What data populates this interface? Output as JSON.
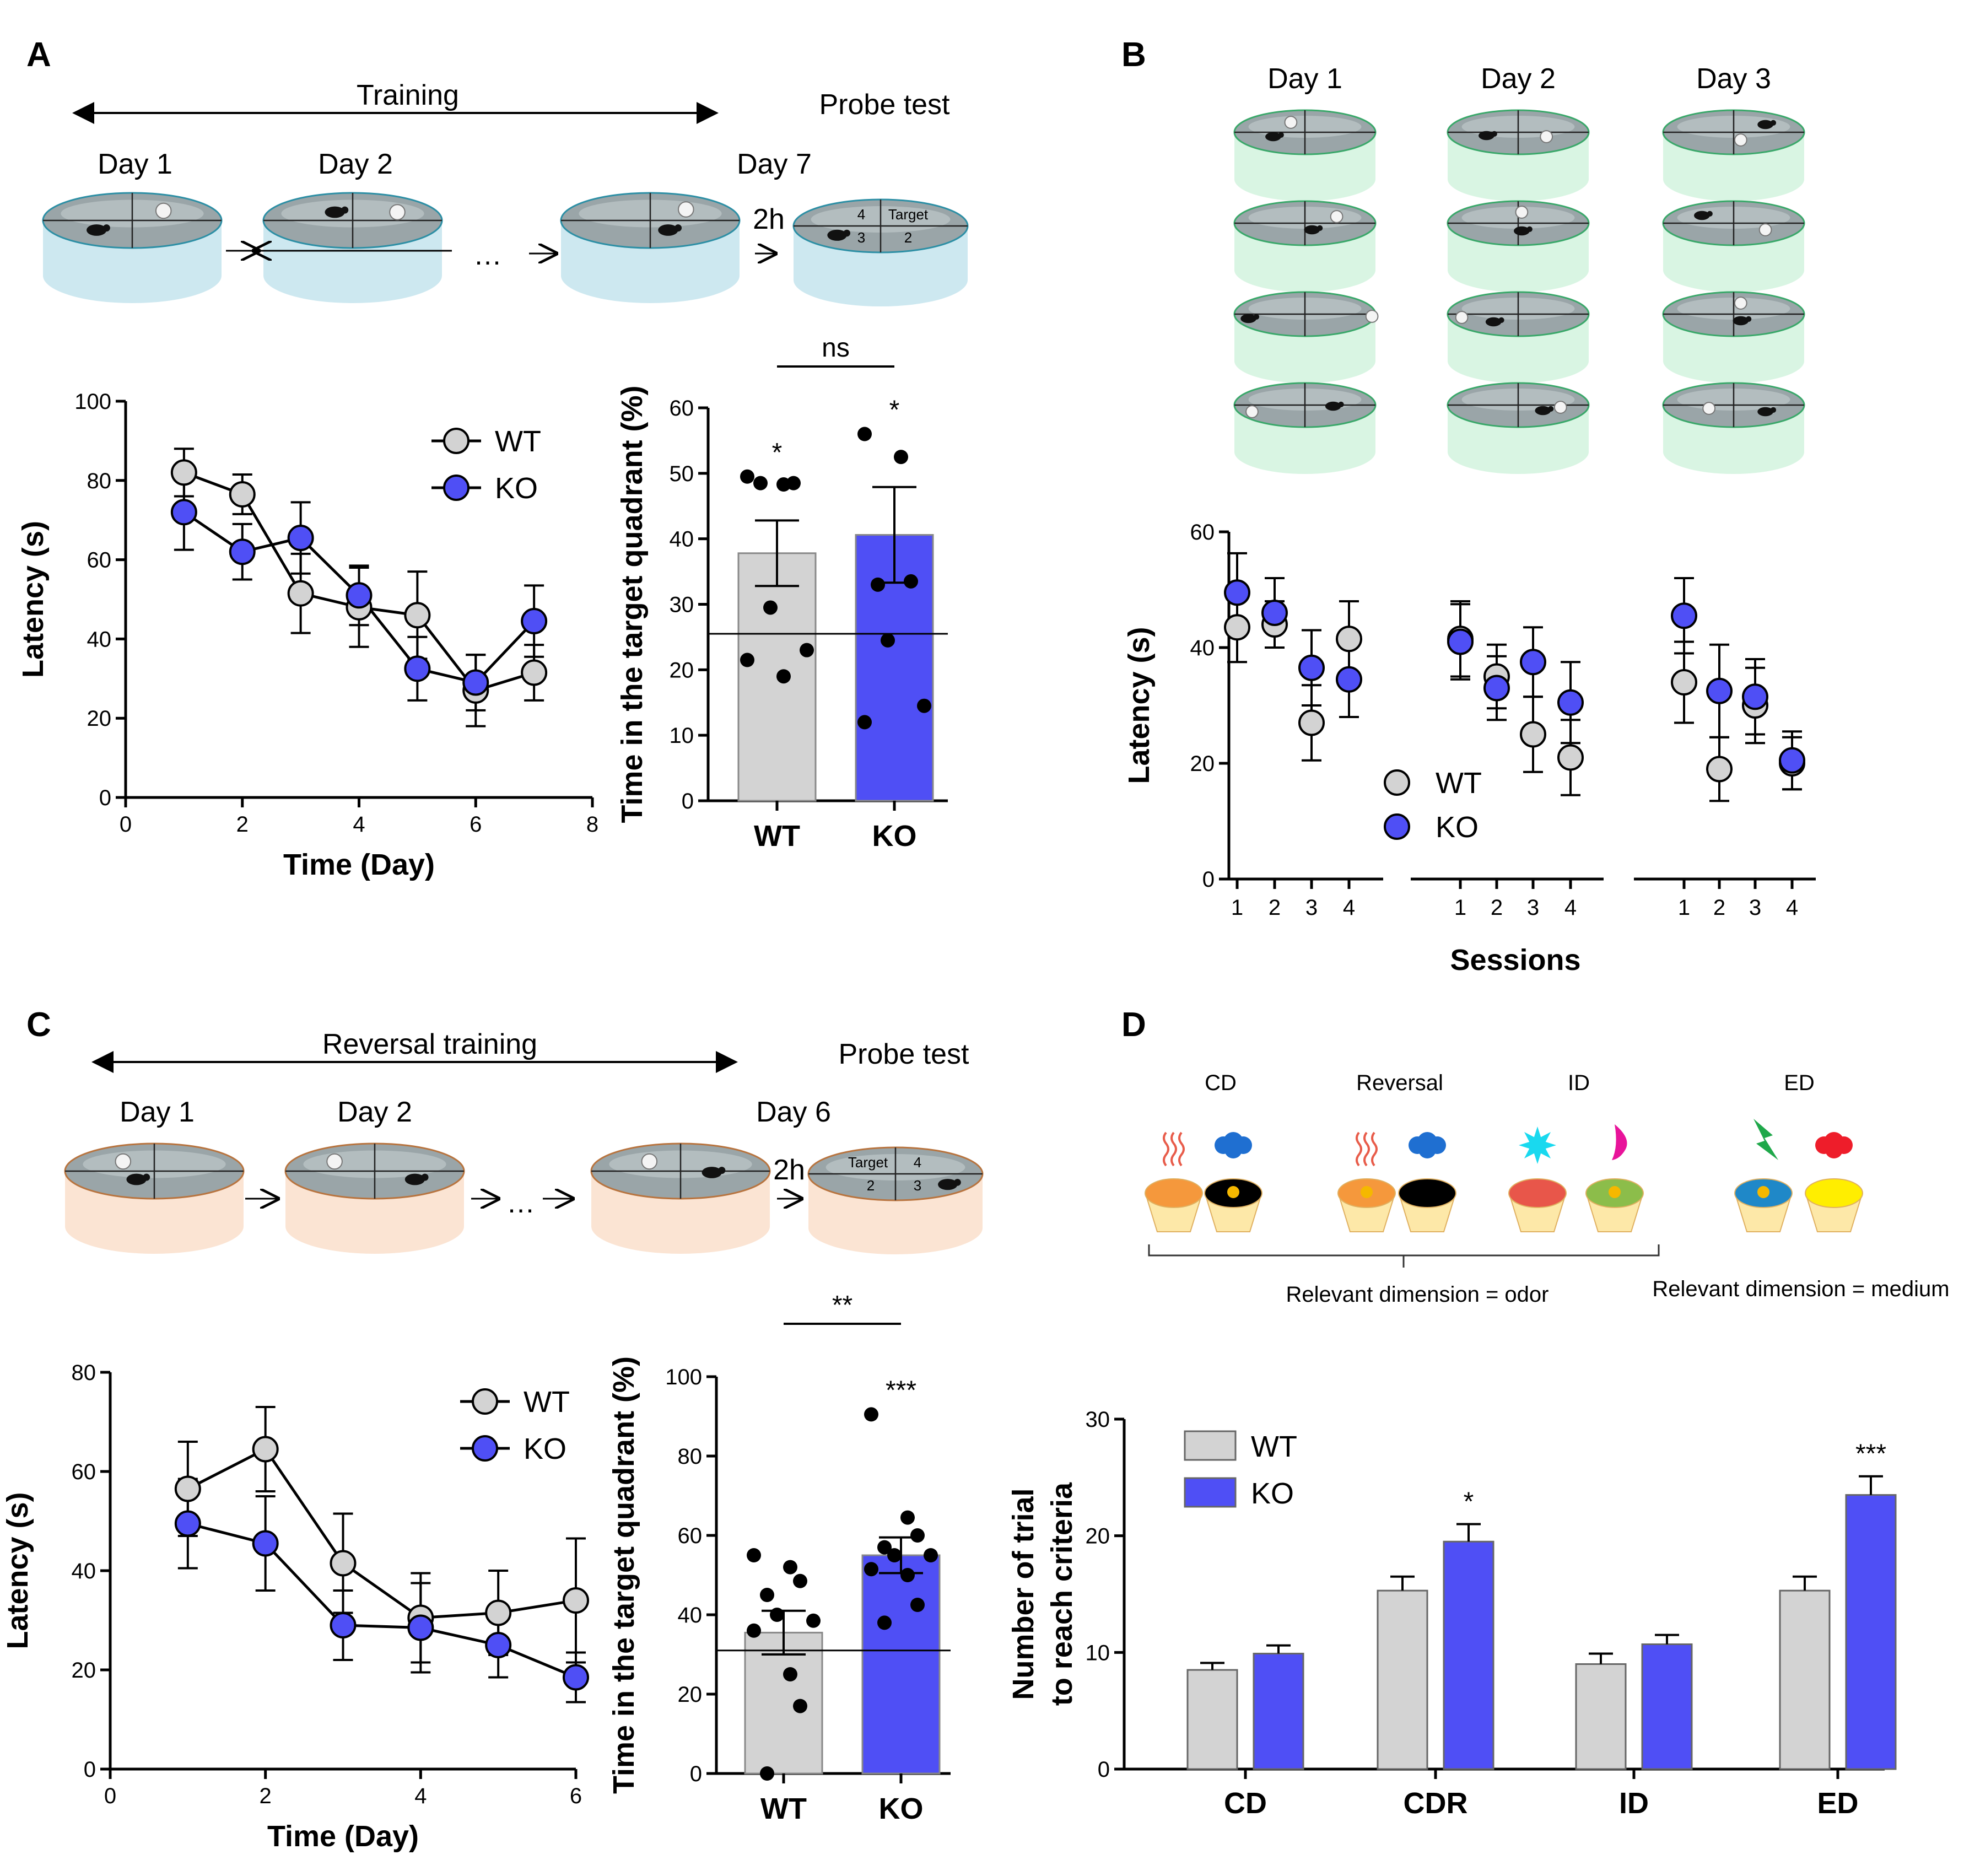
{
  "colors": {
    "wt": "#d3d3d3",
    "ko": "#4f4ff5",
    "pool_a": "#cde8f0",
    "pool_b": "#d9f5e3",
    "pool_c": "#fbe4d3",
    "axis": "#000000"
  },
  "panels": {
    "A": {
      "label": "A",
      "training": "Training",
      "probe": "Probe test",
      "days": [
        "Day 1",
        "Day 2",
        "Day 7"
      ],
      "ellipsis": "…",
      "interval": "2h",
      "target_label": "Target",
      "quadrants": [
        "4",
        "2",
        "3"
      ]
    },
    "B": {
      "label": "B",
      "days": [
        "Day 1",
        "Day 2",
        "Day 3"
      ]
    },
    "C": {
      "label": "C",
      "training": "Reversal training",
      "probe": "Probe test",
      "days": [
        "Day 1",
        "Day 2",
        "Day 6"
      ],
      "ellipsis": "…",
      "interval": "2h",
      "target_label": "Target",
      "quadrants": [
        "4",
        "2",
        "3"
      ]
    },
    "D": {
      "label": "D",
      "conditions": [
        "CD",
        "Reversal",
        "ID",
        "ED"
      ],
      "relevant_odor": "Relevant dimension = odor",
      "relevant_medium": "Relevant dimension = medium"
    }
  },
  "chart_data": [
    {
      "id": "A_line",
      "type": "line",
      "xlabel": "Time (Day)",
      "ylabel": "Latency (s)",
      "xlim": [
        0,
        8
      ],
      "ylim": [
        0,
        100
      ],
      "xticks": [
        0,
        2,
        4,
        6,
        8
      ],
      "yticks": [
        0,
        20,
        40,
        60,
        80,
        100
      ],
      "legend": "top-right",
      "series": [
        {
          "name": "WT",
          "x": [
            1,
            2,
            3,
            4,
            5,
            6,
            7
          ],
          "values": [
            82,
            76.5,
            51.5,
            48,
            46,
            27,
            31.5
          ],
          "err": [
            6,
            5,
            10,
            10,
            11,
            9,
            7
          ]
        },
        {
          "name": "KO",
          "x": [
            1,
            2,
            3,
            4,
            5,
            6,
            7
          ],
          "values": [
            72,
            62,
            65.5,
            51,
            32.5,
            29,
            44.5
          ],
          "err": [
            9.5,
            7,
            9,
            7.5,
            8,
            7,
            9
          ]
        }
      ]
    },
    {
      "id": "A_bar",
      "type": "bar",
      "ylabel": "Time in the target quadrant (%)",
      "ylim": [
        0,
        60
      ],
      "yticks": [
        0,
        10,
        20,
        30,
        40,
        50,
        60
      ],
      "categories": [
        "WT",
        "KO"
      ],
      "values": [
        37.8,
        40.6
      ],
      "err": [
        5,
        7.3
      ],
      "reference": 25.5,
      "points": [
        [
          49.5,
          48.3,
          48.5,
          48.5,
          29.5,
          23,
          21.5,
          19
        ],
        [
          56,
          52.5,
          33.5,
          33,
          24.5,
          14.5,
          12
        ]
      ],
      "stars": [
        "*",
        "*"
      ],
      "comparison": "ns"
    },
    {
      "id": "B_dots",
      "type": "scatter",
      "xlabel": "Sessions",
      "ylabel": "Latency (s)",
      "ylim": [
        0,
        60
      ],
      "yticks": [
        0,
        20,
        40,
        60
      ],
      "session_labels": [
        "1",
        "2",
        "3",
        "4",
        "1",
        "2",
        "3",
        "4",
        "1",
        "2",
        "3",
        "4"
      ],
      "legend": "bottom-left",
      "series": [
        {
          "name": "WT",
          "values": [
            43.5,
            44,
            27,
            41.5,
            41.5,
            35,
            25,
            21,
            34,
            19,
            30,
            20
          ],
          "err": [
            6,
            4,
            6.5,
            6.5,
            6.5,
            5.5,
            6.5,
            6.5,
            7,
            5.5,
            6.5,
            4.5
          ]
        },
        {
          "name": "KO",
          "values": [
            49.5,
            46,
            36.5,
            34.5,
            41,
            33,
            37.5,
            30.5,
            45.5,
            32.5,
            31.5,
            20.5
          ],
          "err": [
            6.8,
            6,
            6.5,
            6.5,
            6.5,
            5.5,
            6,
            7,
            6.5,
            8,
            6.5,
            5
          ]
        }
      ]
    },
    {
      "id": "C_line",
      "type": "line",
      "xlabel": "Time (Day)",
      "ylabel": "Latency (s)",
      "xlim": [
        0,
        6
      ],
      "ylim": [
        0,
        80
      ],
      "xticks": [
        0,
        2,
        4,
        6
      ],
      "yticks": [
        0,
        20,
        40,
        60,
        80
      ],
      "legend": "top-right",
      "series": [
        {
          "name": "WT",
          "x": [
            1,
            2,
            3,
            4,
            5,
            6
          ],
          "values": [
            56.5,
            64.5,
            41.5,
            30.5,
            31.5,
            34
          ],
          "err": [
            9.5,
            8.5,
            10,
            9,
            8.5,
            12.5
          ]
        },
        {
          "name": "KO",
          "x": [
            1,
            2,
            3,
            4,
            5,
            6
          ],
          "values": [
            49.5,
            45.5,
            29,
            28.5,
            25,
            18.5
          ],
          "err": [
            9,
            9.5,
            7,
            9,
            6.5,
            5
          ]
        }
      ]
    },
    {
      "id": "C_bar",
      "type": "bar",
      "ylabel": "Time in the target quadrant (%)",
      "ylim": [
        0,
        100
      ],
      "yticks": [
        0,
        20,
        40,
        60,
        80,
        100
      ],
      "categories": [
        "WT",
        "KO"
      ],
      "values": [
        35.5,
        55
      ],
      "err": [
        5.5,
        4.5
      ],
      "reference": 31,
      "points": [
        [
          55,
          52,
          48.5,
          45,
          40,
          38.5,
          36,
          25,
          17,
          0
        ],
        [
          90.5,
          64.5,
          60,
          57,
          55,
          55,
          51.5,
          50,
          42.5,
          38
        ]
      ],
      "stars": [
        "",
        "***"
      ],
      "comparison": "**"
    },
    {
      "id": "D_bar",
      "type": "bar",
      "ylabel": "Number of trial to reach criteria",
      "ylim": [
        0,
        30
      ],
      "yticks": [
        0,
        10,
        20,
        30
      ],
      "categories": [
        "CD",
        "CDR",
        "ID",
        "ED"
      ],
      "legend": "top-left",
      "series": [
        {
          "name": "WT",
          "values": [
            8.5,
            15.3,
            9,
            15.3
          ],
          "err": [
            0.6,
            1.2,
            0.9,
            1.2
          ]
        },
        {
          "name": "KO",
          "values": [
            9.9,
            19.5,
            10.7,
            23.5
          ],
          "err": [
            0.7,
            1.5,
            0.8,
            1.6
          ]
        }
      ],
      "stars": [
        "",
        "*",
        "",
        "***"
      ]
    }
  ]
}
